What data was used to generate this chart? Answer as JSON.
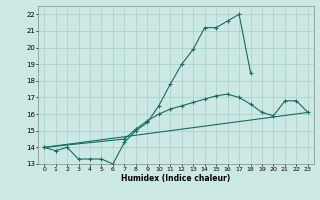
{
  "xlabel": "Humidex (Indice chaleur)",
  "xlim": [
    -0.5,
    23.5
  ],
  "ylim": [
    13,
    22.5
  ],
  "xtick_labels": [
    "0",
    "1",
    "2",
    "3",
    "4",
    "5",
    "6",
    "7",
    "8",
    "9",
    "10",
    "11",
    "12",
    "13",
    "14",
    "15",
    "16",
    "17",
    "18",
    "19",
    "20",
    "21",
    "22",
    "23"
  ],
  "xtick_positions": [
    0,
    1,
    2,
    3,
    4,
    5,
    6,
    7,
    8,
    9,
    10,
    11,
    12,
    13,
    14,
    15,
    16,
    17,
    18,
    19,
    20,
    21,
    22,
    23
  ],
  "ytick_positions": [
    13,
    14,
    15,
    16,
    17,
    18,
    19,
    20,
    21,
    22
  ],
  "ytick_labels": [
    "13",
    "14",
    "15",
    "16",
    "17",
    "18",
    "19",
    "20",
    "21",
    "22"
  ],
  "background_color": "#cce8e4",
  "grid_color": "#aacfcb",
  "line_color": "#1a6b5a",
  "line1_x": [
    0,
    1,
    2,
    3,
    4,
    5,
    6,
    7,
    8,
    9,
    10,
    11,
    12,
    13,
    14,
    15,
    16,
    17,
    18
  ],
  "line1_y": [
    14.0,
    13.8,
    14.0,
    13.3,
    13.3,
    13.3,
    13.0,
    14.3,
    15.0,
    15.5,
    16.5,
    17.8,
    19.0,
    19.9,
    21.2,
    21.2,
    21.6,
    22.0,
    18.5
  ],
  "line2_x": [
    0,
    7,
    8,
    9,
    10,
    11,
    12,
    13,
    14,
    15,
    16,
    17,
    18,
    19,
    20,
    21,
    22,
    23
  ],
  "line2_y": [
    14.0,
    14.5,
    15.1,
    15.6,
    16.0,
    16.3,
    16.5,
    16.7,
    16.9,
    17.1,
    17.2,
    17.0,
    16.6,
    16.1,
    15.9,
    16.8,
    16.8,
    16.1
  ],
  "line3_x": [
    0,
    23
  ],
  "line3_y": [
    14.0,
    16.1
  ]
}
